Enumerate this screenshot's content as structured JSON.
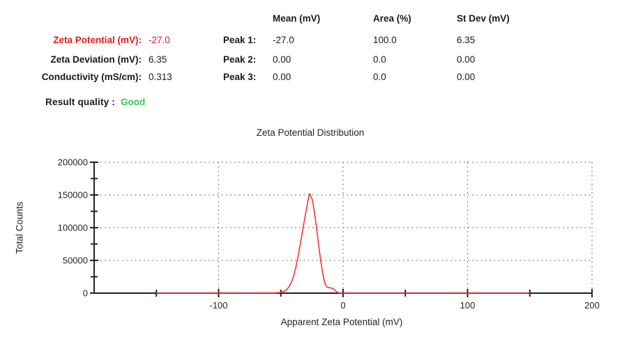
{
  "results": {
    "rows": [
      {
        "label": "Zeta Potential (mV):",
        "value": "-27.0",
        "highlight": "red"
      },
      {
        "label": "Zeta Deviation (mV):",
        "value": "6.35"
      },
      {
        "label": "Conductivity (mS/cm):",
        "value": "0.313"
      }
    ],
    "quality_label": "Result quality :",
    "quality_value": "Good"
  },
  "peaks_table": {
    "headers": [
      "Mean (mV)",
      "Area (%)",
      "St Dev (mV)"
    ],
    "rows": [
      {
        "label": "Peak 1:",
        "mean": "-27.0",
        "area": "100.0",
        "stdev": "6.35"
      },
      {
        "label": "Peak 2:",
        "mean": "0.00",
        "area": "0.0",
        "stdev": "0.00"
      },
      {
        "label": "Peak 3:",
        "mean": "0.00",
        "area": "0.0",
        "stdev": "0.00"
      }
    ]
  },
  "colors": {
    "accent_red": "#e41c1c",
    "good_green": "#3cc24e",
    "axis": "#222222",
    "grid_dot": "#6a6a6a",
    "curve": "#fd3131"
  },
  "chart_data": {
    "type": "line",
    "title": "Zeta Potential Distribution",
    "xlabel": "Apparent Zeta Potential (mV)",
    "ylabel": "Total Counts",
    "xlim": [
      -200,
      200
    ],
    "ylim": [
      0,
      200000
    ],
    "x_major_ticks": [
      -100,
      0,
      100,
      200
    ],
    "x_minor_step": 50,
    "y_major_ticks": [
      0,
      50000,
      100000,
      150000,
      200000
    ],
    "y_minor_step": 25000,
    "grid": "dotted",
    "legend": "none",
    "series": [
      {
        "name": "zeta-distribution",
        "color": "#fd3131",
        "peak_mean_mV": -27.0,
        "peak_max_counts": 152000,
        "x_extent": [
          -150,
          150
        ],
        "points": [
          [
            -150,
            0
          ],
          [
            -62,
            0
          ],
          [
            -57,
            200
          ],
          [
            -54,
            400
          ],
          [
            -52,
            700
          ],
          [
            -50,
            1100
          ],
          [
            -48,
            2100
          ],
          [
            -46,
            4200
          ],
          [
            -44,
            8200
          ],
          [
            -42,
            14500
          ],
          [
            -40,
            24500
          ],
          [
            -38,
            39000
          ],
          [
            -36,
            57500
          ],
          [
            -34,
            79000
          ],
          [
            -32,
            101500
          ],
          [
            -30,
            122500
          ],
          [
            -28,
            143000
          ],
          [
            -27,
            152000
          ],
          [
            -26,
            149000
          ],
          [
            -25,
            144500
          ],
          [
            -24,
            135500
          ],
          [
            -23,
            123500
          ],
          [
            -22,
            109500
          ],
          [
            -21,
            94500
          ],
          [
            -20,
            79000
          ],
          [
            -19,
            64000
          ],
          [
            -18,
            50000
          ],
          [
            -17,
            37500
          ],
          [
            -16,
            27000
          ],
          [
            -15,
            18500
          ],
          [
            -14,
            12500
          ],
          [
            -13,
            9500
          ],
          [
            -12,
            8600
          ],
          [
            -11,
            8300
          ],
          [
            -10,
            8000
          ],
          [
            -9,
            7600
          ],
          [
            -8,
            6800
          ],
          [
            -7,
            5400
          ],
          [
            -6,
            3600
          ],
          [
            -5,
            1900
          ],
          [
            -4,
            800
          ],
          [
            -3,
            250
          ],
          [
            -2,
            0
          ],
          [
            150,
            0
          ]
        ]
      }
    ]
  }
}
